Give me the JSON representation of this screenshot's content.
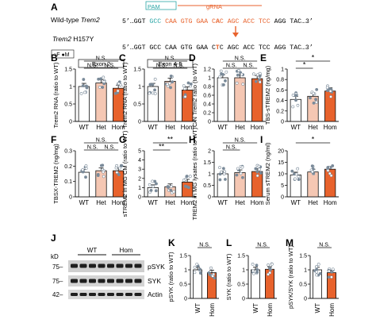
{
  "colors": {
    "wt": "#ffffff",
    "het": "#f5c7b3",
    "hom": "#e8622c",
    "pam": "#2aa6a6",
    "grna": "#e8622c",
    "axis": "#111111",
    "dot": "#7a8a99"
  },
  "panel_a": {
    "letter": "A",
    "wt_label_prefix": "Wild-type ",
    "wt_label_gene": "Trem2",
    "pam_label": "PAM",
    "grna_label": "gRNA",
    "wt_seq_start": "5’…GGT",
    "wt_seq_pam": "GCC",
    "wt_seq_mid": "CAA GTG GAA C",
    "wt_seq_mut": "A",
    "wt_seq_after": "C AGC ACC TCC",
    "wt_seq_end": "AGG TAC…3’",
    "mut_label_gene": "Trem2",
    "mut_label_suffix": " H157Y",
    "mut_seq_start": "5’…GGT GCC CAA GTG GAA C",
    "mut_seq_mut": "T",
    "mut_seq_end": "C AGC ACC TCC AGG TAC…3’"
  },
  "panel_j": {
    "letter": "J",
    "lane_labels": [
      "WT",
      "Hom"
    ],
    "kda_label": "kD",
    "markers": [
      "75–",
      "75–",
      "42–"
    ],
    "bands": [
      "pSYK",
      "SYK",
      "Actin"
    ]
  },
  "chart_data": [
    {
      "id": "B",
      "type": "bar",
      "subtitle": "Exon 2",
      "legend": [
        "F",
        "M"
      ],
      "ylabel": "Trem2 RNA (ratio to WT)",
      "categories": [
        "WT",
        "Het",
        "Hom"
      ],
      "values": [
        1.0,
        1.1,
        0.95
      ],
      "ylim": [
        0,
        1.5
      ],
      "yticks": [
        0,
        0.5,
        1,
        1.5
      ],
      "sig": [
        "N.S.",
        "N.S.",
        "N.S."
      ]
    },
    {
      "id": "C",
      "type": "bar",
      "subtitle": "Exon 4-5",
      "ylabel": "Trem2 RNA (ratio to WT)",
      "categories": [
        "WT",
        "Het",
        "Hom"
      ],
      "values": [
        1.0,
        1.15,
        0.9
      ],
      "ylim": [
        0,
        1.5
      ],
      "yticks": [
        0,
        0.5,
        1,
        1.5
      ],
      "sig": [
        "N.S.",
        "N.S.",
        "N.S."
      ]
    },
    {
      "id": "D",
      "type": "bar",
      "ylabel": "C/N Trem2 ratio (to WT)",
      "categories": [
        "WT",
        "Het",
        "Hom"
      ],
      "values": [
        1.0,
        1.0,
        0.98
      ],
      "ylim": [
        0,
        1.2
      ],
      "yticks": [
        0,
        0.2,
        0.4,
        0.6,
        0.8,
        1,
        1.2
      ],
      "sig": [
        "N.S.",
        "N.S.",
        "N.S."
      ]
    },
    {
      "id": "E",
      "type": "bar",
      "ylabel": "TBS-sTREM2 (ng/mg)",
      "categories": [
        "WT",
        "Het",
        "Hom"
      ],
      "values": [
        0.42,
        0.48,
        0.58
      ],
      "ylim": [
        0,
        1
      ],
      "yticks": [
        0,
        0.2,
        0.4,
        0.6,
        0.8,
        1
      ],
      "sig": [
        "*",
        "*",
        ""
      ]
    },
    {
      "id": "F",
      "type": "bar",
      "ylabel": "TBSX-TREM2 (ng/mg)",
      "categories": [
        "WT",
        "Het",
        "Hom"
      ],
      "values": [
        0.16,
        0.17,
        0.17
      ],
      "ylim": [
        0,
        0.3
      ],
      "yticks": [
        0,
        0.1,
        0.2,
        0.3
      ],
      "sig": [
        "N.S.",
        "N.S.",
        "N.S."
      ]
    },
    {
      "id": "G",
      "type": "bar",
      "ylabel": "sTREM2 in MG CM (ratio to WT)",
      "categories": [
        "WT",
        "Het",
        "Hom"
      ],
      "values": [
        1.0,
        1.1,
        1.6
      ],
      "ylim": [
        0,
        5
      ],
      "yticks": [
        0,
        1,
        2,
        3,
        4,
        5
      ],
      "sig": [
        "**",
        "**",
        ""
      ]
    },
    {
      "id": "H",
      "type": "bar",
      "ylabel": "TREM2 in MG lysates (ratio to WT)",
      "categories": [
        "WT",
        "Het",
        "Hom"
      ],
      "values": [
        1.0,
        1.05,
        1.1
      ],
      "ylim": [
        0,
        2
      ],
      "yticks": [
        0,
        0.5,
        1,
        1.5,
        2
      ],
      "sig": [
        "N.S.",
        "N.S.",
        ""
      ]
    },
    {
      "id": "I",
      "type": "bar",
      "ylabel": "Serum sTREM2 (ng/ml)",
      "categories": [
        "WT",
        "Het",
        "Hom"
      ],
      "values": [
        9.5,
        10.8,
        12.0
      ],
      "ylim": [
        0,
        20
      ],
      "yticks": [
        0,
        5,
        10,
        15,
        20
      ],
      "sig": [
        "*",
        "",
        ""
      ]
    },
    {
      "id": "K",
      "type": "bar",
      "ylabel": "pSYK (ratio to WT)",
      "categories": [
        "WT",
        "Hom"
      ],
      "values": [
        1.0,
        0.9
      ],
      "ylim": [
        0,
        1.5
      ],
      "yticks": [
        0,
        0.5,
        1,
        1.5
      ],
      "sig": [
        "N.S."
      ]
    },
    {
      "id": "L",
      "type": "bar",
      "ylabel": "SYK (ratio to WT)",
      "categories": [
        "WT",
        "Hom"
      ],
      "values": [
        1.0,
        1.02
      ],
      "ylim": [
        0,
        1.5
      ],
      "yticks": [
        0,
        0.5,
        1,
        1.5
      ],
      "sig": [
        "N.S."
      ]
    },
    {
      "id": "M",
      "type": "bar",
      "ylabel": "pSYK/SYK (ratio to WT)",
      "categories": [
        "WT",
        "Hom"
      ],
      "values": [
        1.0,
        0.9
      ],
      "ylim": [
        0,
        1.5
      ],
      "yticks": [
        0,
        0.5,
        1,
        1.5
      ],
      "sig": [
        "N.S."
      ]
    }
  ]
}
